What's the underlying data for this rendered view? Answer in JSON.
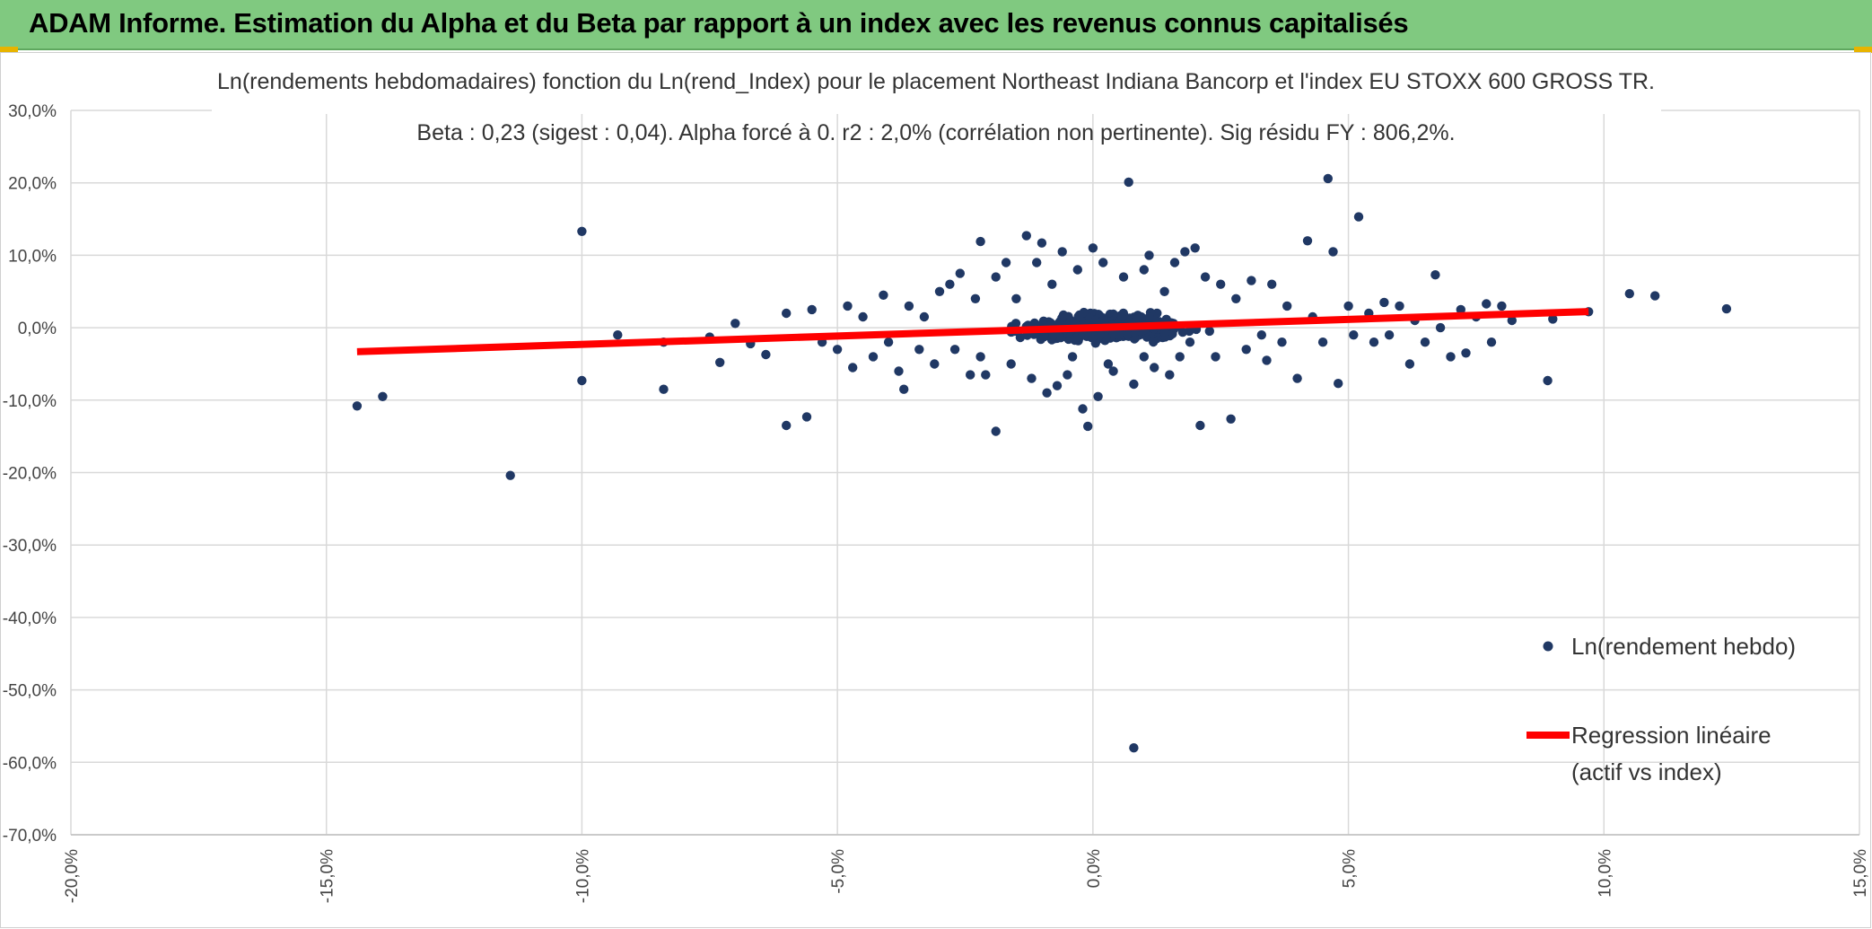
{
  "header": {
    "title": "ADAM Informe. Estimation du Alpha et du Beta par rapport à un index avec les revenus connus capitalisés"
  },
  "colors": {
    "header_bg": "#80c980",
    "points": "#203864",
    "regression": "#ff0000",
    "grid": "#d9d9d9"
  },
  "chart_data": {
    "type": "scatter",
    "title": "Ln(rendements hebdomadaires) fonction du Ln(rend_Index) pour le placement Northeast Indiana Bancorp et l'index EU STOXX 600 GROSS TR.",
    "subtitle": "Beta : 0,23 (sigest : 0,04). Alpha forcé à 0. r2 : 2,0% (corrélation non pertinente). Sig résidu FY : 806,2%.",
    "xlim": [
      -0.2,
      0.15
    ],
    "ylim": [
      -0.7,
      0.3
    ],
    "x_ticks": [
      "-20,0%",
      "-15,0%",
      "-10,0%",
      "-5,0%",
      "0,0%",
      "5,0%",
      "10,0%",
      "15,0%"
    ],
    "y_ticks": [
      "30,0%",
      "20,0%",
      "10,0%",
      "0,0%",
      "-10,0%",
      "-20,0%",
      "-30,0%",
      "-40,0%",
      "-50,0%",
      "-60,0%",
      "-70,0%"
    ],
    "grid": true,
    "legend_position": "right",
    "series": [
      {
        "name": "Ln(rendement hebdo)",
        "kind": "scatter",
        "points": [
          [
            -0.144,
            -0.108
          ],
          [
            -0.139,
            -0.095
          ],
          [
            -0.114,
            -0.204
          ],
          [
            -0.1,
            0.133
          ],
          [
            -0.1,
            -0.073
          ],
          [
            -0.093,
            -0.01
          ],
          [
            -0.084,
            -0.02
          ],
          [
            -0.084,
            -0.085
          ],
          [
            -0.075,
            -0.013
          ],
          [
            -0.073,
            -0.048
          ],
          [
            -0.07,
            0.006
          ],
          [
            -0.067,
            -0.022
          ],
          [
            -0.064,
            -0.037
          ],
          [
            -0.06,
            -0.135
          ],
          [
            -0.06,
            0.02
          ],
          [
            -0.056,
            -0.123
          ],
          [
            -0.055,
            0.025
          ],
          [
            -0.053,
            -0.02
          ],
          [
            -0.05,
            -0.03
          ],
          [
            -0.048,
            0.03
          ],
          [
            -0.047,
            -0.055
          ],
          [
            -0.045,
            0.015
          ],
          [
            -0.043,
            -0.04
          ],
          [
            -0.041,
            0.045
          ],
          [
            -0.04,
            -0.02
          ],
          [
            -0.038,
            -0.06
          ],
          [
            -0.037,
            -0.085
          ],
          [
            -0.036,
            0.03
          ],
          [
            -0.034,
            -0.03
          ],
          [
            -0.033,
            0.015
          ],
          [
            -0.031,
            -0.05
          ],
          [
            -0.03,
            0.05
          ],
          [
            -0.028,
            0.06
          ],
          [
            -0.027,
            -0.03
          ],
          [
            -0.026,
            0.075
          ],
          [
            -0.024,
            -0.065
          ],
          [
            -0.023,
            0.04
          ],
          [
            -0.022,
            -0.04
          ],
          [
            -0.022,
            0.119
          ],
          [
            -0.021,
            -0.065
          ],
          [
            -0.019,
            0.07
          ],
          [
            -0.019,
            -0.143
          ],
          [
            -0.017,
            0.09
          ],
          [
            -0.016,
            -0.05
          ],
          [
            -0.015,
            0.04
          ],
          [
            -0.013,
            0.127
          ],
          [
            -0.012,
            -0.07
          ],
          [
            -0.011,
            0.09
          ],
          [
            -0.01,
            0.117
          ],
          [
            -0.009,
            -0.09
          ],
          [
            -0.008,
            0.06
          ],
          [
            -0.007,
            -0.08
          ],
          [
            -0.006,
            0.105
          ],
          [
            -0.005,
            -0.065
          ],
          [
            -0.004,
            -0.04
          ],
          [
            -0.003,
            0.08
          ],
          [
            -0.002,
            -0.112
          ],
          [
            -0.001,
            -0.136
          ],
          [
            0.0,
            0.11
          ],
          [
            0.001,
            -0.095
          ],
          [
            0.002,
            0.09
          ],
          [
            0.003,
            -0.05
          ],
          [
            0.004,
            -0.06
          ],
          [
            0.006,
            0.07
          ],
          [
            0.007,
            0.201
          ],
          [
            0.008,
            -0.078
          ],
          [
            0.008,
            -0.58
          ],
          [
            0.01,
            0.08
          ],
          [
            0.01,
            -0.04
          ],
          [
            0.011,
            0.1
          ],
          [
            0.012,
            -0.055
          ],
          [
            0.014,
            0.05
          ],
          [
            0.015,
            -0.065
          ],
          [
            0.016,
            0.09
          ],
          [
            0.017,
            -0.04
          ],
          [
            0.018,
            0.105
          ],
          [
            0.019,
            -0.02
          ],
          [
            0.02,
            0.11
          ],
          [
            0.021,
            -0.135
          ],
          [
            0.022,
            0.07
          ],
          [
            0.024,
            -0.04
          ],
          [
            0.025,
            0.06
          ],
          [
            0.027,
            -0.126
          ],
          [
            0.028,
            0.04
          ],
          [
            0.03,
            -0.03
          ],
          [
            0.031,
            0.065
          ],
          [
            0.033,
            -0.01
          ],
          [
            0.034,
            -0.045
          ],
          [
            0.035,
            0.06
          ],
          [
            0.037,
            -0.02
          ],
          [
            0.038,
            0.03
          ],
          [
            0.04,
            -0.07
          ],
          [
            0.042,
            0.12
          ],
          [
            0.043,
            0.015
          ],
          [
            0.045,
            -0.02
          ],
          [
            0.046,
            0.206
          ],
          [
            0.047,
            0.105
          ],
          [
            0.048,
            -0.077
          ],
          [
            0.05,
            0.03
          ],
          [
            0.051,
            -0.01
          ],
          [
            0.052,
            0.153
          ],
          [
            0.054,
            0.02
          ],
          [
            0.055,
            -0.02
          ],
          [
            0.057,
            0.035
          ],
          [
            0.058,
            -0.01
          ],
          [
            0.06,
            0.03
          ],
          [
            0.062,
            -0.05
          ],
          [
            0.063,
            0.01
          ],
          [
            0.065,
            -0.02
          ],
          [
            0.067,
            0.073
          ],
          [
            0.068,
            0.0
          ],
          [
            0.07,
            -0.04
          ],
          [
            0.072,
            0.025
          ],
          [
            0.073,
            -0.035
          ],
          [
            0.075,
            0.015
          ],
          [
            0.077,
            0.033
          ],
          [
            0.078,
            -0.02
          ],
          [
            0.08,
            0.03
          ],
          [
            0.082,
            0.01
          ],
          [
            0.089,
            -0.073
          ],
          [
            0.09,
            0.012
          ],
          [
            0.097,
            0.022
          ],
          [
            0.105,
            0.047
          ],
          [
            0.11,
            0.044
          ],
          [
            0.124,
            0.026
          ]
        ]
      },
      {
        "name": "Regression linéaire",
        "name_line2": "(actif vs index)",
        "kind": "line",
        "x": [
          -0.144,
          0.097
        ],
        "y": [
          -0.0331,
          0.0223
        ]
      }
    ]
  }
}
